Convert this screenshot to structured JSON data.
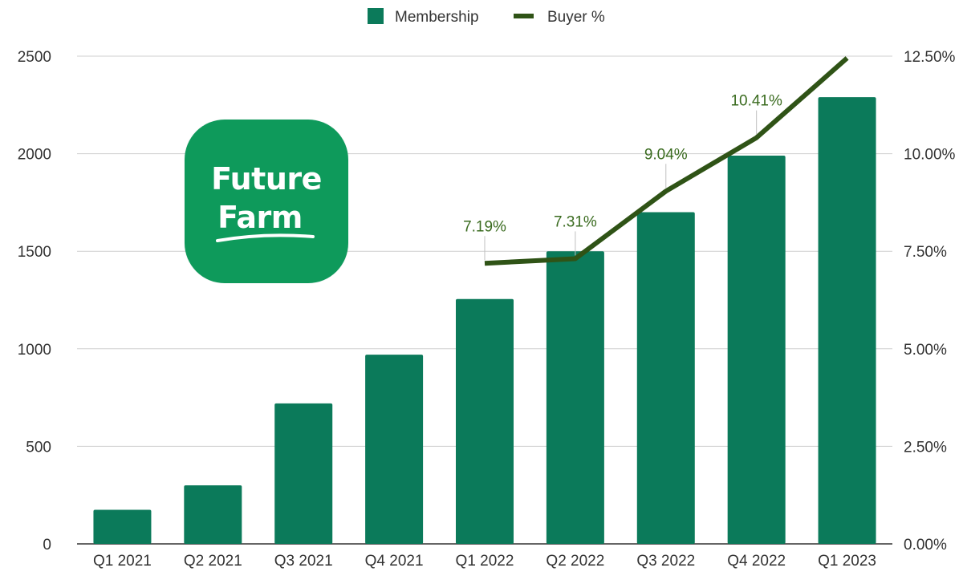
{
  "logo": {
    "line1": "Future",
    "line2": "Farm",
    "background": "#0e9a5b"
  },
  "chart_data": {
    "type": "bar",
    "categories": [
      "Q1 2021",
      "Q2 2021",
      "Q3 2021",
      "Q4 2021",
      "Q1 2022",
      "Q2 2022",
      "Q3 2022",
      "Q4 2022",
      "Q1 2023"
    ],
    "series": [
      {
        "name": "Membership",
        "type": "bar",
        "axis": "left",
        "color": "#0b7a5a",
        "values": [
          175,
          300,
          720,
          970,
          1255,
          1500,
          1700,
          1990,
          2290
        ]
      },
      {
        "name": "Buyer %",
        "type": "line",
        "axis": "right",
        "color": "#2f5316",
        "values": [
          null,
          null,
          null,
          null,
          7.19,
          7.31,
          9.04,
          10.41,
          12.45
        ],
        "data_labels": [
          null,
          null,
          null,
          null,
          "7.19%",
          "7.31%",
          "9.04%",
          "10.41%",
          null
        ]
      }
    ],
    "y_left": {
      "ylim": [
        0,
        2500
      ],
      "ticks": [
        "0",
        "500",
        "1000",
        "1500",
        "2000",
        "2500"
      ]
    },
    "y_right": {
      "ylim": [
        0,
        12.5
      ],
      "ticks": [
        "0.00%",
        "2.50%",
        "5.00%",
        "7.50%",
        "10.00%",
        "12.50%"
      ]
    },
    "grid": true,
    "legend_position": "top"
  }
}
